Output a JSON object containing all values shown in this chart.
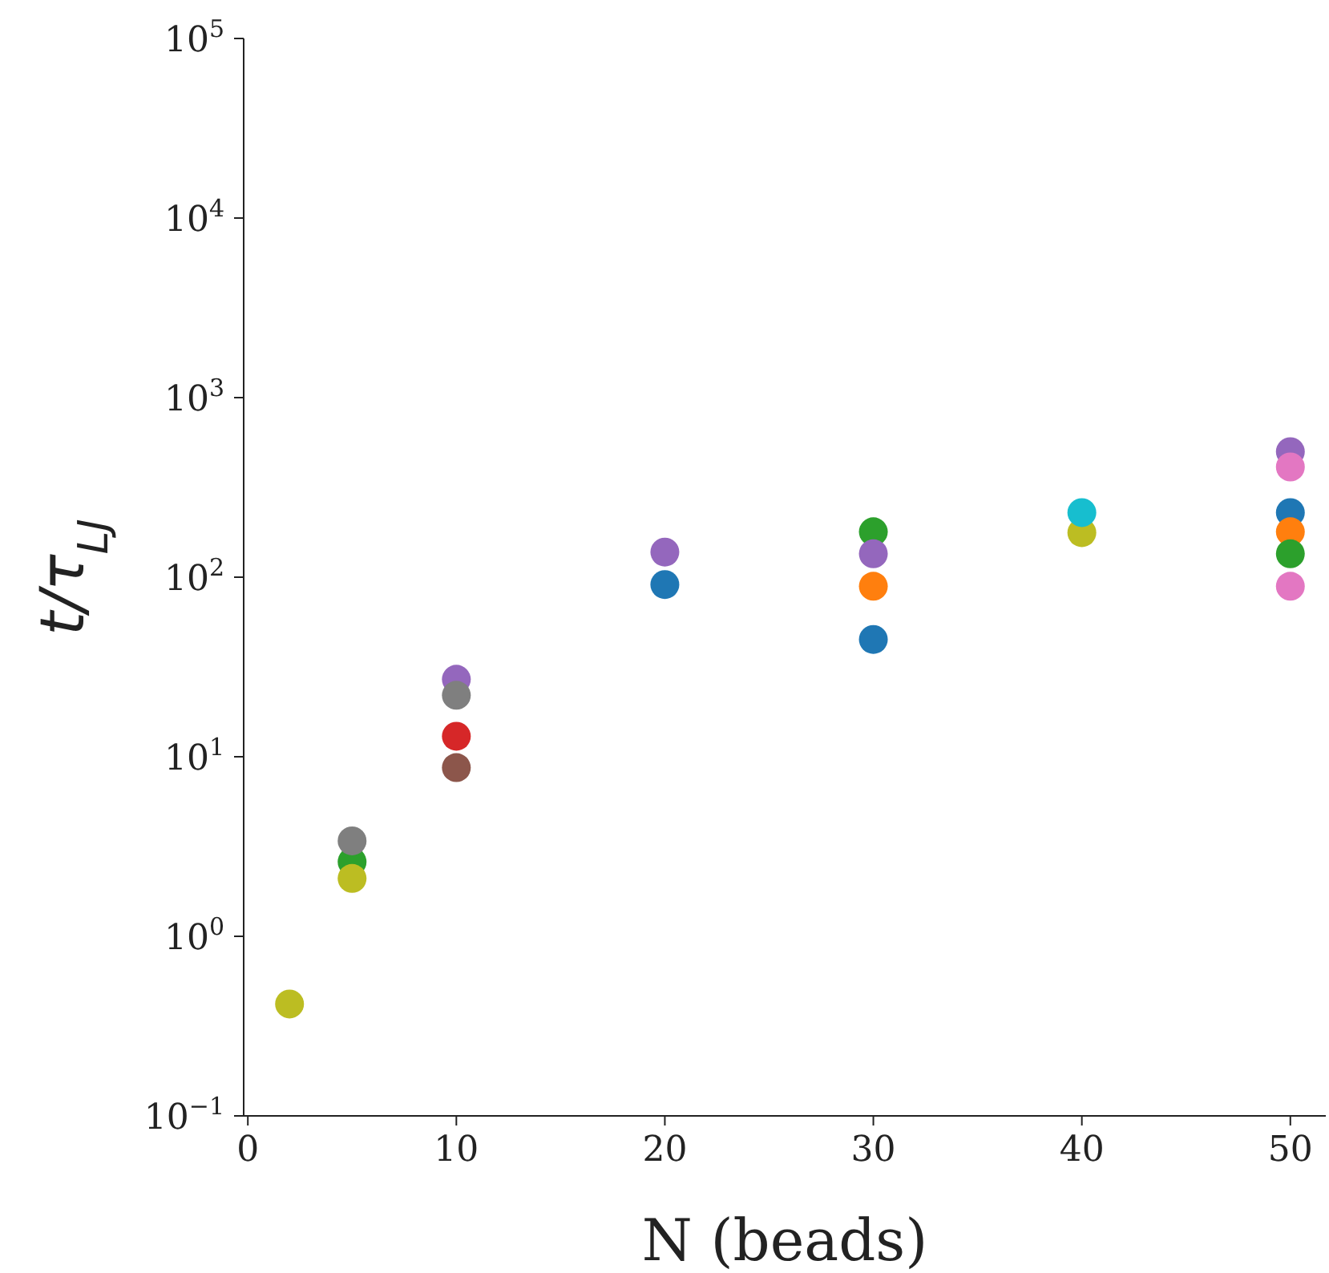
{
  "chart_data": {
    "type": "scatter",
    "xlabel": "N (beads)",
    "ylabel": "t/τ$_{LJ}$",
    "log": "y",
    "marker": "circle",
    "legend": false,
    "grid": false,
    "xlim": [
      -0.2,
      51.7
    ],
    "xticks": [
      0,
      10,
      20,
      30,
      40,
      50
    ],
    "ylim": [
      0.1,
      100000
    ],
    "yticks": [
      {
        "value": 0.1,
        "label": "10$^{−1}$"
      },
      {
        "value": 1,
        "label": "10$^{0}$"
      },
      {
        "value": 10,
        "label": "10$^{1}$"
      },
      {
        "value": 100,
        "label": "10$^{2}$"
      },
      {
        "value": 1000,
        "label": "10$^{3}$"
      },
      {
        "value": 10000,
        "label": "10$^{4}$"
      },
      {
        "value": 100000,
        "label": "10$^{5}$"
      }
    ],
    "series": [
      {
        "color": "#1f77b4",
        "x": [
          20,
          30,
          50
        ],
        "values": [
          91,
          45,
          229
        ]
      },
      {
        "color": "#ff7f0e",
        "x": [
          30,
          50
        ],
        "values": [
          89,
          179
        ]
      },
      {
        "color": "#2ca02c",
        "x": [
          5,
          30,
          50
        ],
        "values": [
          2.6,
          179,
          135
        ]
      },
      {
        "color": "#d62728",
        "x": [
          10
        ],
        "values": [
          13
        ]
      },
      {
        "color": "#9467bd",
        "x": [
          10,
          20,
          30,
          50
        ],
        "values": [
          27,
          138,
          135,
          500
        ]
      },
      {
        "color": "#8c564b",
        "x": [
          10
        ],
        "values": [
          8.7
        ]
      },
      {
        "color": "#e377c2",
        "x": [
          50,
          50
        ],
        "values": [
          411,
          89
        ]
      },
      {
        "color": "#7f7f7f",
        "x": [
          5,
          10
        ],
        "values": [
          3.4,
          22
        ]
      },
      {
        "color": "#bcbd22",
        "x": [
          2,
          5,
          40
        ],
        "values": [
          0.42,
          2.1,
          177
        ]
      },
      {
        "color": "#17becf",
        "x": [
          40
        ],
        "values": [
          229
        ]
      }
    ]
  }
}
